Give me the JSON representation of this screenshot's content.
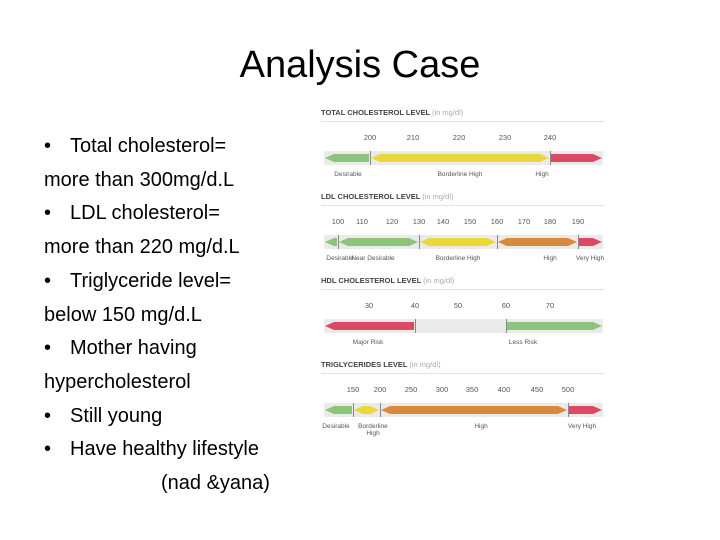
{
  "title": "Analysis Case",
  "bullets": [
    {
      "bullet": "•",
      "text": "Total cholesterol="
    },
    {
      "bullet": "",
      "text": "more than 300mg/d.L"
    },
    {
      "bullet": "•",
      "text": "LDL cholesterol="
    },
    {
      "bullet": "",
      "text": "more than 220 mg/d.L"
    },
    {
      "bullet": "•",
      "text": "Triglyceride level="
    },
    {
      "bullet": "",
      "text": "below 150 mg/d.L"
    },
    {
      "bullet": "•",
      "text": "Mother having"
    },
    {
      "bullet": "",
      "text": "hypercholesterol"
    },
    {
      "bullet": "•",
      "text": "Still young"
    },
    {
      "bullet": "•",
      "text": "Have healthy lifestyle"
    }
  ],
  "signoff": "(nad &yana)",
  "colors": {
    "green": "#8cc47c",
    "yellow": "#e8d83a",
    "orange": "#d8893a",
    "red": "#db4a62",
    "track": "#eaeaea"
  },
  "chart_data": [
    {
      "type": "table",
      "title": "TOTAL CHOLESTEROL LEVEL",
      "unit": "(in mg/dl)",
      "ticks": [
        "200",
        "210",
        "220",
        "230",
        "240"
      ],
      "categories": [
        {
          "label": "Desirable",
          "range": [
            "",
            "200"
          ],
          "color": "green"
        },
        {
          "label": "Borderline High",
          "range": [
            "200",
            "240"
          ],
          "color": "yellow"
        },
        {
          "label": "High",
          "range": [
            "240",
            ""
          ],
          "color": "red"
        }
      ]
    },
    {
      "type": "table",
      "title": "LDL CHOLESTEROL LEVEL",
      "unit": "(in mg/dl)",
      "ticks": [
        "100",
        "110",
        "120",
        "130",
        "140",
        "150",
        "160",
        "170",
        "180",
        "190"
      ],
      "categories": [
        {
          "label": "Desirable",
          "range": [
            "",
            "100"
          ],
          "color": "green"
        },
        {
          "label": "Near Desirable",
          "range": [
            "100",
            "130"
          ],
          "color": "green"
        },
        {
          "label": "Borderline High",
          "range": [
            "130",
            "160"
          ],
          "color": "yellow"
        },
        {
          "label": "High",
          "range": [
            "160",
            "190"
          ],
          "color": "orange"
        },
        {
          "label": "Very High",
          "range": [
            "190",
            ""
          ],
          "color": "red"
        }
      ]
    },
    {
      "type": "table",
      "title": "HDL CHOLESTEROL LEVEL",
      "unit": "(in mg/dl)",
      "ticks": [
        "30",
        "40",
        "50",
        "60",
        "70"
      ],
      "categories": [
        {
          "label": "Major Risk",
          "range": [
            "",
            "40"
          ],
          "color": "red"
        },
        {
          "label": "Less Risk",
          "range": [
            "40",
            "60"
          ],
          "color": "track"
        },
        {
          "label": "",
          "range": [
            "60",
            ""
          ],
          "color": "green"
        }
      ]
    },
    {
      "type": "table",
      "title": "TRIGLYCERIDES  LEVEL",
      "unit": "(in mg/dl)",
      "ticks": [
        "150",
        "200",
        "250",
        "300",
        "350",
        "400",
        "450",
        "500"
      ],
      "categories": [
        {
          "label": "Desirable",
          "range": [
            "",
            "150"
          ],
          "color": "green"
        },
        {
          "label": "Borderline High",
          "range": [
            "150",
            "200"
          ],
          "color": "yellow"
        },
        {
          "label": "High",
          "range": [
            "200",
            "500"
          ],
          "color": "orange"
        },
        {
          "label": "Very High",
          "range": [
            "500",
            ""
          ],
          "color": "red"
        }
      ]
    }
  ]
}
